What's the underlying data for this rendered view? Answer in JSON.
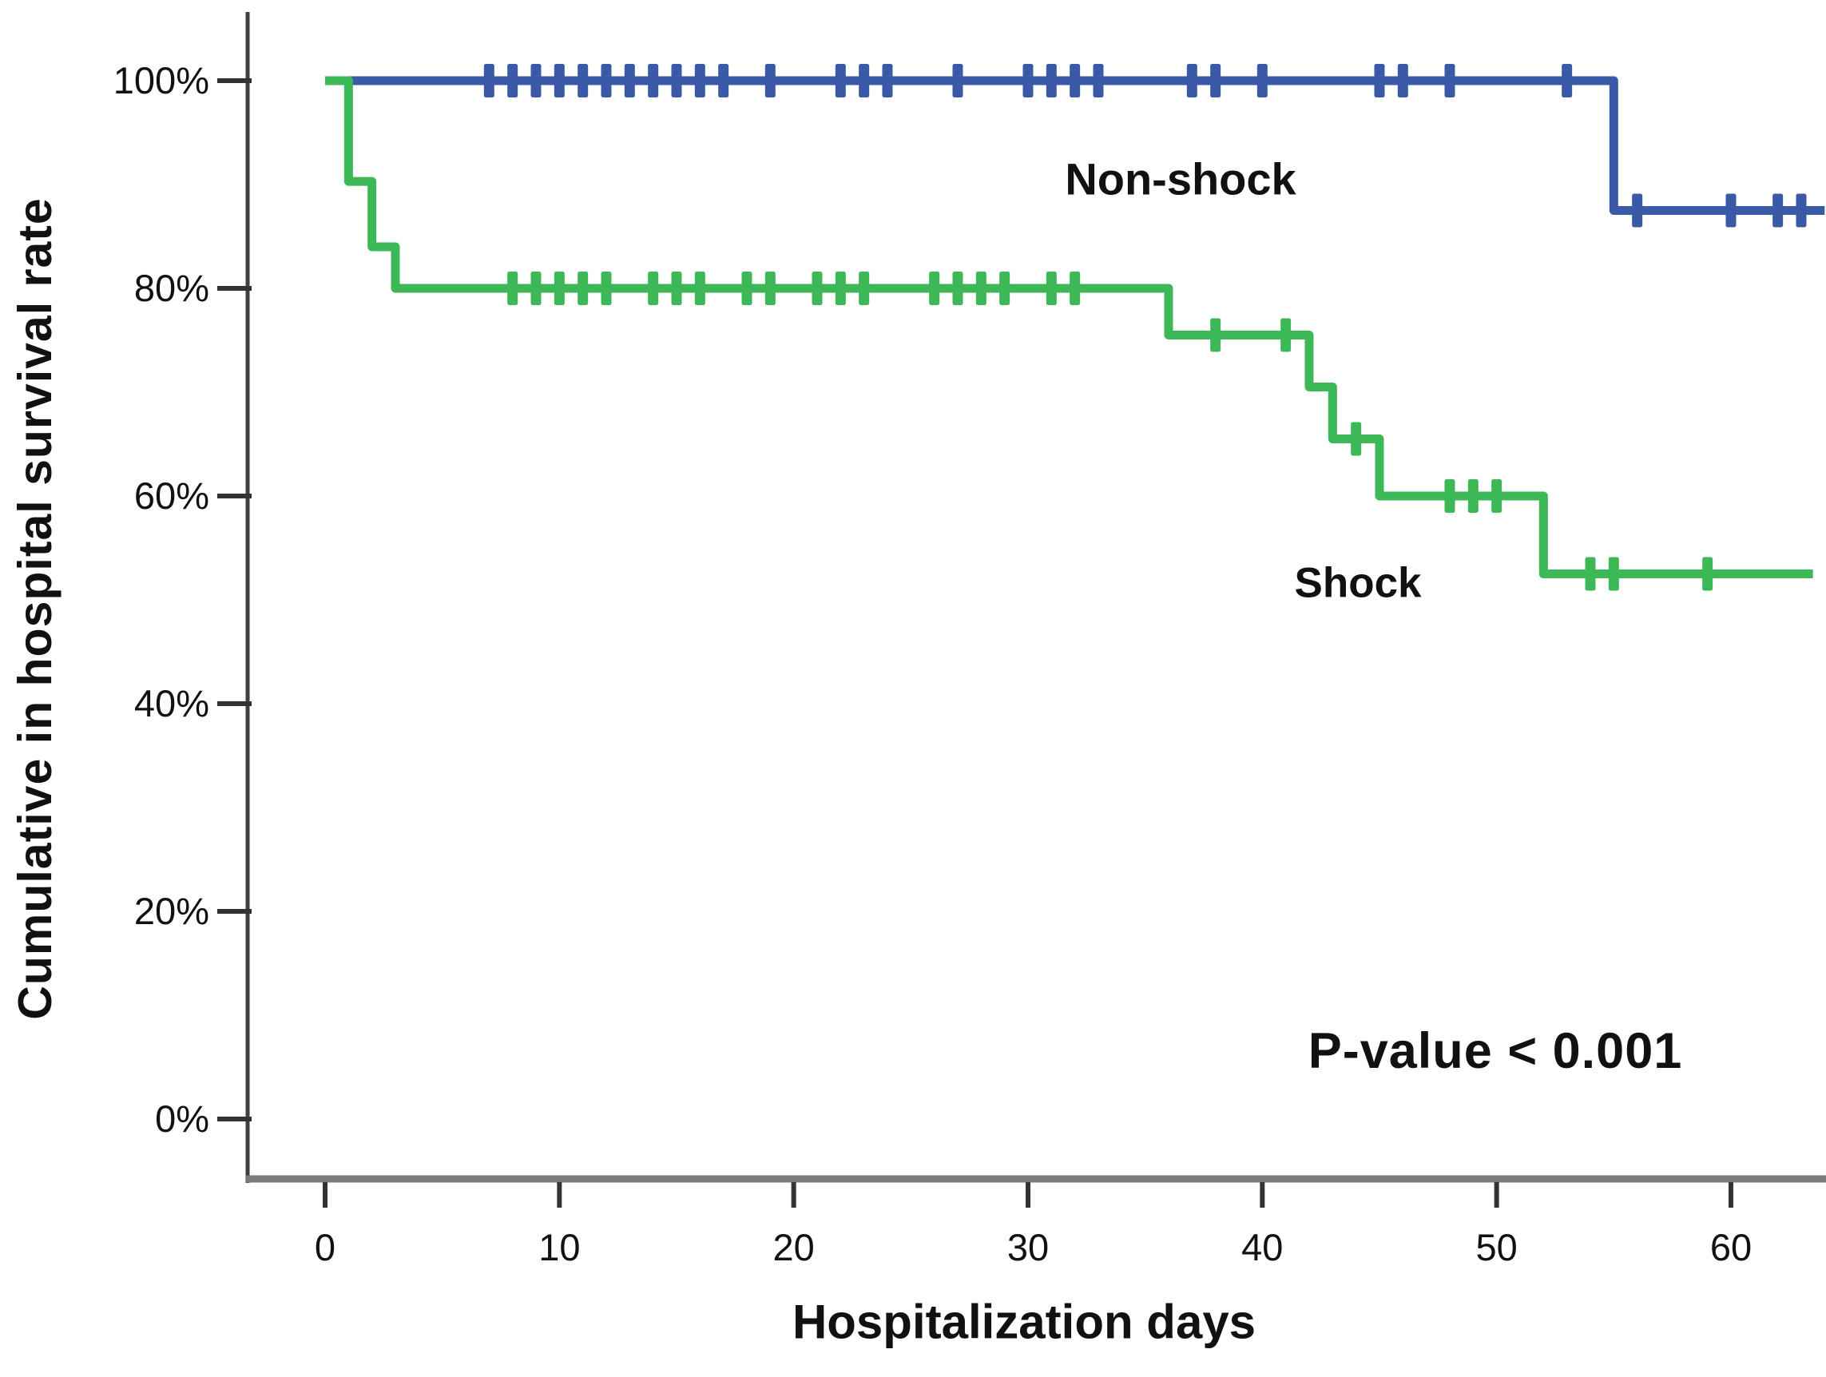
{
  "figure": {
    "background": "#ffffff",
    "axis_color": "#3f3f3f",
    "baseline_color": "#7a7a7a",
    "text_color": "#111111"
  },
  "chart_data": {
    "type": "line",
    "subtype": "kaplan-meier-step-survival",
    "title": "",
    "xlabel": "Hospitalization days",
    "ylabel": "Cumulative in hospital survival rate",
    "annotation": "P-value < 0.001",
    "grid": false,
    "legend_position": "inline-labels",
    "xlim": [
      -3.3,
      64
    ],
    "ylim": [
      0,
      103
    ],
    "x_ticks": [
      0,
      10,
      20,
      30,
      40,
      50,
      60
    ],
    "x_tick_labels": [
      "0",
      "10",
      "20",
      "30",
      "40",
      "50",
      "60"
    ],
    "y_ticks": [
      0,
      20,
      40,
      60,
      80,
      100
    ],
    "y_tick_labels": [
      "0%",
      "20%",
      "40%",
      "60%",
      "80%",
      "100%"
    ],
    "series": [
      {
        "name": "Non-shock",
        "color": "#3a5aa8",
        "steps_day_pct": [
          [
            0,
            100
          ],
          [
            55,
            100
          ],
          [
            55,
            87.5
          ],
          [
            64,
            87.5
          ]
        ],
        "censor_marks_day_pct": [
          [
            7,
            100
          ],
          [
            8,
            100
          ],
          [
            9,
            100
          ],
          [
            10,
            100
          ],
          [
            11,
            100
          ],
          [
            12,
            100
          ],
          [
            13,
            100
          ],
          [
            14,
            100
          ],
          [
            15,
            100
          ],
          [
            16,
            100
          ],
          [
            17,
            100
          ],
          [
            19,
            100
          ],
          [
            22,
            100
          ],
          [
            23,
            100
          ],
          [
            24,
            100
          ],
          [
            27,
            100
          ],
          [
            30,
            100
          ],
          [
            31,
            100
          ],
          [
            32,
            100
          ],
          [
            33,
            100
          ],
          [
            37,
            100
          ],
          [
            38,
            100
          ],
          [
            40,
            100
          ],
          [
            45,
            100
          ],
          [
            46,
            100
          ],
          [
            48,
            100
          ],
          [
            53,
            100
          ],
          [
            56,
            87.5
          ],
          [
            60,
            87.5
          ],
          [
            62,
            87.5
          ],
          [
            63,
            87.5
          ]
        ]
      },
      {
        "name": "Shock",
        "color": "#3cb856",
        "steps_day_pct": [
          [
            0,
            100
          ],
          [
            1,
            100
          ],
          [
            1,
            90.3
          ],
          [
            2,
            90.3
          ],
          [
            2,
            84
          ],
          [
            3,
            84
          ],
          [
            3,
            80
          ],
          [
            36,
            80
          ],
          [
            36,
            75.5
          ],
          [
            42,
            75.5
          ],
          [
            42,
            70.5
          ],
          [
            43,
            70.5
          ],
          [
            43,
            65.5
          ],
          [
            45,
            65.5
          ],
          [
            45,
            60
          ],
          [
            52,
            60
          ],
          [
            52,
            52.5
          ],
          [
            63.5,
            52.5
          ]
        ],
        "censor_marks_day_pct": [
          [
            8,
            80
          ],
          [
            9,
            80
          ],
          [
            10,
            80
          ],
          [
            11,
            80
          ],
          [
            12,
            80
          ],
          [
            14,
            80
          ],
          [
            15,
            80
          ],
          [
            16,
            80
          ],
          [
            18,
            80
          ],
          [
            19,
            80
          ],
          [
            21,
            80
          ],
          [
            22,
            80
          ],
          [
            23,
            80
          ],
          [
            26,
            80
          ],
          [
            27,
            80
          ],
          [
            28,
            80
          ],
          [
            29,
            80
          ],
          [
            31,
            80
          ],
          [
            32,
            80
          ],
          [
            38,
            75.5
          ],
          [
            41,
            75.5
          ],
          [
            44,
            65.5
          ],
          [
            48,
            60
          ],
          [
            49,
            60
          ],
          [
            50,
            60
          ],
          [
            54,
            52.5
          ],
          [
            55,
            52.5
          ],
          [
            59,
            52.5
          ]
        ]
      }
    ]
  }
}
